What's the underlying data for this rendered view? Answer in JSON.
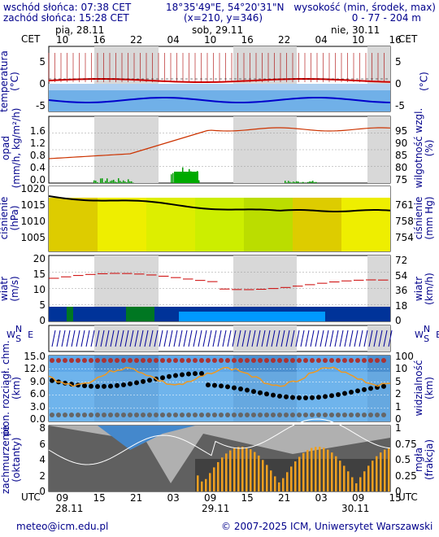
{
  "header": {
    "sunrise": "wschód słońca: 07:38 CET",
    "sunset": "zachód słońca: 15:28 CET",
    "coords": "18°35'49\"E, 54°20'31\"N",
    "grid": "(x=210, y=346)",
    "elevation_label": "wysokość (min, środek, max)",
    "elevation_values": "0 - 77 - 204 m"
  },
  "timezone_top": "CET",
  "timezone_bottom": "UTC",
  "top_days": [
    {
      "label": "pią, 28.11"
    },
    {
      "label": "sob, 29.11"
    },
    {
      "label": "nie, 30.11"
    }
  ],
  "top_hours": [
    "10",
    "16",
    "22",
    "04",
    "10",
    "16",
    "22",
    "04",
    "10",
    "16"
  ],
  "bottom_hours": [
    "09",
    "15",
    "21",
    "03",
    "09",
    "15",
    "21",
    "03",
    "09",
    "15"
  ],
  "bottom_days": [
    "28.11",
    "29.11",
    "30.11"
  ],
  "panels": {
    "temperature": {
      "label_left": "temperatura\n(°C)",
      "label_right": "(°C)",
      "ticks_left": [
        "5",
        "0",
        "-5"
      ],
      "ticks_right": [
        "5",
        "0",
        "-5"
      ]
    },
    "precip": {
      "label_left": "opad\n(mm/h, kg/m²/h)",
      "label_right": "wilgotność wzgl.\n(%)",
      "ticks_left": [
        "1.6",
        "1.2",
        "0.8",
        "0.4",
        "0.0"
      ],
      "ticks_right": [
        "95",
        "90",
        "85",
        "80",
        "75"
      ]
    },
    "pressure": {
      "label_left": "ciśnienie\n(hPa)",
      "label_right": "ciśnienie\n(mm Hg)",
      "ticks_left": [
        "1020",
        "1015",
        "1010",
        "1005"
      ],
      "ticks_right": [
        "761",
        "758",
        "754"
      ]
    },
    "wind": {
      "label_left": "wiatr\n(m/s)",
      "label_right": "wiatr\n(km/h)",
      "ticks_left": [
        "20",
        "15",
        "10",
        "5",
        "0"
      ],
      "ticks_right": [
        "72",
        "54",
        "36",
        "18",
        "0"
      ]
    },
    "winddir": {
      "label_left": "W S N E",
      "label_right": "W S N E"
    },
    "visibility": {
      "label_left": "pion. rozciągł. chm.\n(km)",
      "label_right": "widzialność\n(km)",
      "ticks_left": [
        "15.0",
        "12.0",
        "9.0",
        "6.0",
        "3.0",
        "0.0"
      ],
      "ticks_right": [
        "100",
        "10",
        "5",
        "2",
        "1",
        "0"
      ]
    },
    "clouds": {
      "label_left": "zachmurzenie\n(oktanty)",
      "label_right": "mgła\n(frakcja)",
      "ticks_left": [
        "8",
        "6",
        "4",
        "2",
        "0"
      ],
      "ticks_right": [
        "1",
        "0.75",
        "0.5",
        "0.25",
        "0"
      ]
    }
  },
  "footer": {
    "email": "meteo@icm.edu.pl",
    "copyright": "© 2007-2025 ICM, Uniwersytet Warszawski"
  },
  "colors": {
    "text": "#00008b",
    "temp_line": "#cc0000",
    "dew_line": "#0000cc",
    "humidity": "#cc3300",
    "pressure_fill": "#ccee00",
    "wind_fill": "#003399",
    "fog_bar": "#f0a020"
  }
}
